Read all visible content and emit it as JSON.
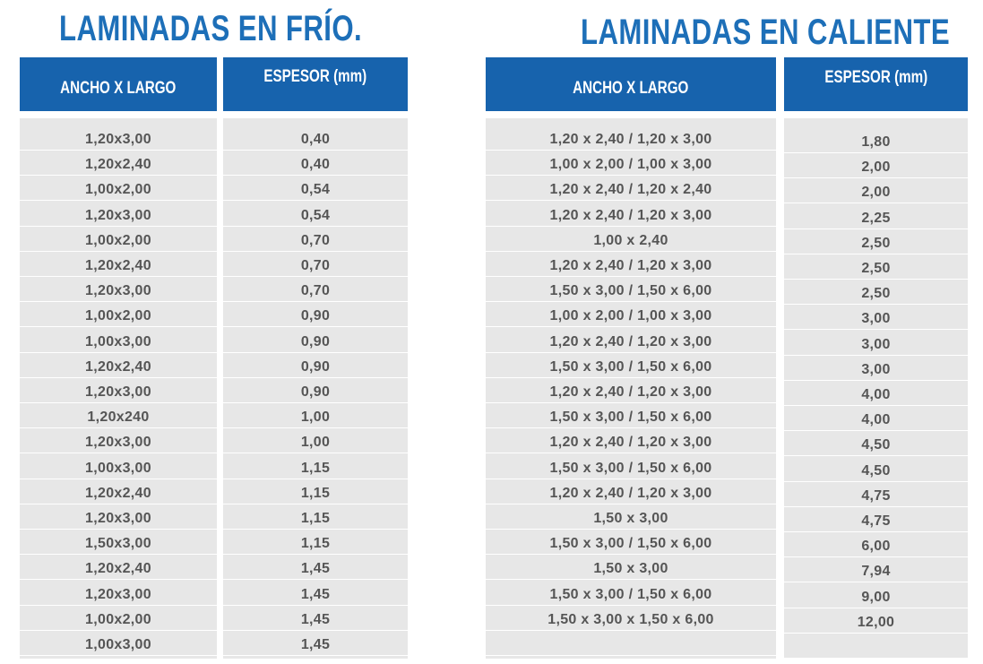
{
  "cold": {
    "title": "LAMINADAS EN FRÍO.",
    "header_width": "ANCHO X LARGO",
    "header_thickness": "ESPESOR (mm)",
    "rows": [
      [
        "1,20x3,00",
        "0,40"
      ],
      [
        "1,20x2,40",
        "0,40"
      ],
      [
        "1,00x2,00",
        "0,54"
      ],
      [
        "1,20x3,00",
        "0,54"
      ],
      [
        "1,00x2,00",
        "0,70"
      ],
      [
        "1,20x2,40",
        "0,70"
      ],
      [
        "1,20x3,00",
        "0,70"
      ],
      [
        "1,00x2,00",
        "0,90"
      ],
      [
        "1,00x3,00",
        "0,90"
      ],
      [
        "1,20x2,40",
        "0,90"
      ],
      [
        "1,20x3,00",
        "0,90"
      ],
      [
        "1,20x240",
        "1,00"
      ],
      [
        "1,20x3,00",
        "1,00"
      ],
      [
        "1,00x3,00",
        "1,15"
      ],
      [
        "1,20x2,40",
        "1,15"
      ],
      [
        "1,20x3,00",
        "1,15"
      ],
      [
        "1,50x3,00",
        "1,15"
      ],
      [
        "1,20x2,40",
        "1,45"
      ],
      [
        "1,20x3,00",
        "1,45"
      ],
      [
        "1,00x2,00",
        "1,45"
      ],
      [
        "1,00x3,00",
        "1,45"
      ]
    ]
  },
  "hot": {
    "title": "LAMINADAS EN CALIENTE",
    "header_width": "ANCHO X LARGO",
    "header_thickness": "ESPESOR (mm)",
    "rows": [
      [
        "1,20 x 2,40 / 1,20 x 3,00",
        "1,80"
      ],
      [
        "1,00 x 2,00 / 1,00 x 3,00",
        "2,00"
      ],
      [
        "1,20 x 2,40  / 1,20 x 2,40",
        "2,00"
      ],
      [
        "1,20 x 2,40 / 1,20 x 3,00",
        "2,25"
      ],
      [
        "1,00 x 2,40",
        "2,50"
      ],
      [
        "1,20 x 2,40 / 1,20 x 3,00",
        "2,50"
      ],
      [
        "1,50 x 3,00 / 1,50 x 6,00",
        "2,50"
      ],
      [
        "1,00 x 2,00 / 1,00 x 3,00",
        "3,00"
      ],
      [
        "1,20 x 2,40 / 1,20 x 3,00",
        "3,00"
      ],
      [
        "1,50 x 3,00 / 1,50 x 6,00",
        "3,00"
      ],
      [
        "1,20 x 2,40 / 1,20 x 3,00",
        "4,00"
      ],
      [
        "1,50 x 3,00 / 1,50 x 6,00",
        "4,00"
      ],
      [
        "1,20 x 2,40 / 1,20 x 3,00",
        "4,50"
      ],
      [
        "1,50 x 3,00 / 1,50 x 6,00",
        "4,50"
      ],
      [
        "1,20 x 2,40 / 1,20 x 3,00",
        "4,75"
      ],
      [
        "1,50 x 3,00",
        "4,75"
      ],
      [
        "1,50 x 3,00 / 1,50 x 6,00",
        "6,00"
      ],
      [
        "1,50 x 3,00",
        "7,94"
      ],
      [
        "1,50 x 3,00 / 1,50 x 6,00",
        "9,00"
      ],
      [
        "1,50 x 3,00 x 1,50 x 6,00",
        "12,00"
      ]
    ]
  }
}
